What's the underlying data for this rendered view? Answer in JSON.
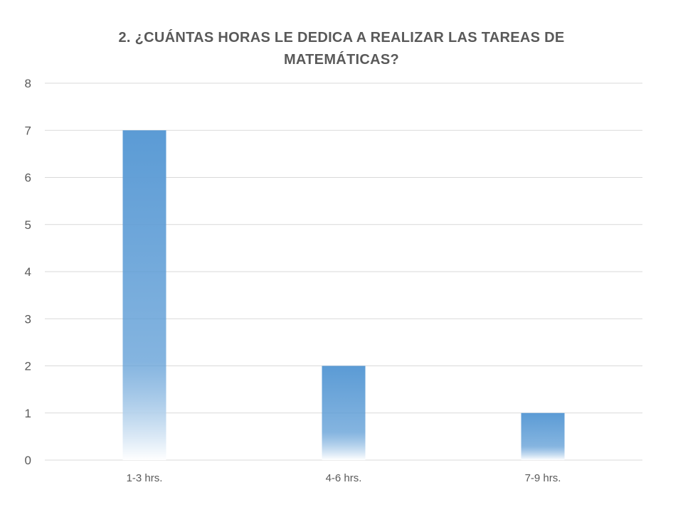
{
  "chart_data": {
    "type": "bar",
    "title": "2. ¿CUÁNTAS HORAS LE DEDICA A REALIZAR LAS TAREAS DE MATEMÁTICAS?",
    "categories": [
      "1-3 hrs.",
      "4-6 hrs.",
      "7-9 hrs."
    ],
    "values": [
      7,
      2,
      1
    ],
    "xlabel": "",
    "ylabel": "",
    "ylim": [
      0,
      8
    ],
    "yticks": [
      "0",
      "1",
      "2",
      "3",
      "4",
      "5",
      "6",
      "7",
      "8"
    ],
    "grid": true,
    "legend": "none",
    "colors": {
      "bar_top": "#5b9bd5",
      "bar_bottom": "#ffffff",
      "grid": "#d9d9d9",
      "text": "#595959"
    }
  }
}
